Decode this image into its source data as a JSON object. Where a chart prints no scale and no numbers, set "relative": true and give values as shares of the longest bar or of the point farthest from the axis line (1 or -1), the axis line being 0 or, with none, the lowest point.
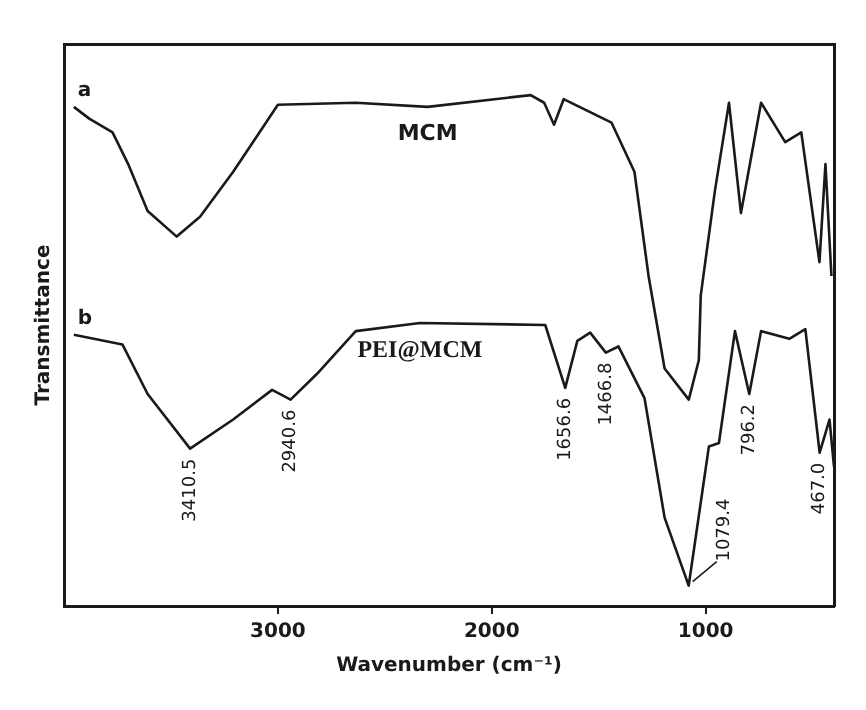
{
  "chart_data": {
    "type": "line",
    "xlabel": "Wavenumber (cm⁻¹)",
    "ylabel": "Transmittance",
    "relative": true,
    "xlim": [
      4000,
      400
    ],
    "xticks": [
      3000,
      2000,
      1000
    ],
    "grid": false,
    "legend": false,
    "marker": "none",
    "line_style": "solid",
    "series": [
      {
        "name": "MCM",
        "color": "#1a1a1a",
        "x": [
          3954,
          3882,
          3773,
          3700,
          3609,
          3473,
          3364,
          3209,
          3000,
          2636,
          2300,
          1818,
          1755,
          1709,
          1664,
          1440,
          1333,
          1267,
          1192,
          1079,
          1032,
          1023,
          957,
          891,
          835,
          741,
          628,
          553,
          468,
          440,
          412
        ],
        "values": [
          0.977,
          0.954,
          0.927,
          0.865,
          0.773,
          0.723,
          0.762,
          0.85,
          0.981,
          0.985,
          0.977,
          1.0,
          0.985,
          0.942,
          0.992,
          0.946,
          0.85,
          0.646,
          0.465,
          0.404,
          0.481,
          0.608,
          0.812,
          0.985,
          0.769,
          0.985,
          0.908,
          0.927,
          0.673,
          0.865,
          0.646
        ]
      },
      {
        "name": "PEI@MCM",
        "color": "#1a1a1a",
        "x": [
          3954,
          3727,
          3609,
          3410.5,
          3209,
          3027,
          2940.6,
          2818,
          2636,
          2336,
          1750,
          1656.6,
          1600,
          1540,
          1466.8,
          1408,
          1286,
          1192,
          1079.4,
          985,
          938,
          863,
          796.2,
          741,
          609,
          534,
          467.0,
          421,
          400
        ],
        "values": [
          0.531,
          0.512,
          0.415,
          0.308,
          0.365,
          0.423,
          0.404,
          0.454,
          0.538,
          0.554,
          0.55,
          0.427,
          0.519,
          0.535,
          0.496,
          0.508,
          0.407,
          0.173,
          0.04,
          0.312,
          0.319,
          0.538,
          0.415,
          0.538,
          0.523,
          0.542,
          0.3,
          0.365,
          0.273
        ]
      }
    ],
    "annotations": [
      {
        "text": "a",
        "x": 3954,
        "y": 0.977
      },
      {
        "text": "b",
        "x": 3954,
        "y": 0.531
      },
      {
        "text": "3410.5",
        "x": 3410.5,
        "y": 0.308
      },
      {
        "text": "2940.6",
        "x": 2940.6,
        "y": 0.404
      },
      {
        "text": "1656.6",
        "x": 1656.6,
        "y": 0.427
      },
      {
        "text": "1466.8",
        "x": 1466.8,
        "y": 0.496
      },
      {
        "text": "1079.4",
        "x": 1079.4,
        "y": 0.04
      },
      {
        "text": "796.2",
        "x": 796.2,
        "y": 0.415
      },
      {
        "text": "467.0",
        "x": 467.0,
        "y": 0.3
      }
    ]
  }
}
